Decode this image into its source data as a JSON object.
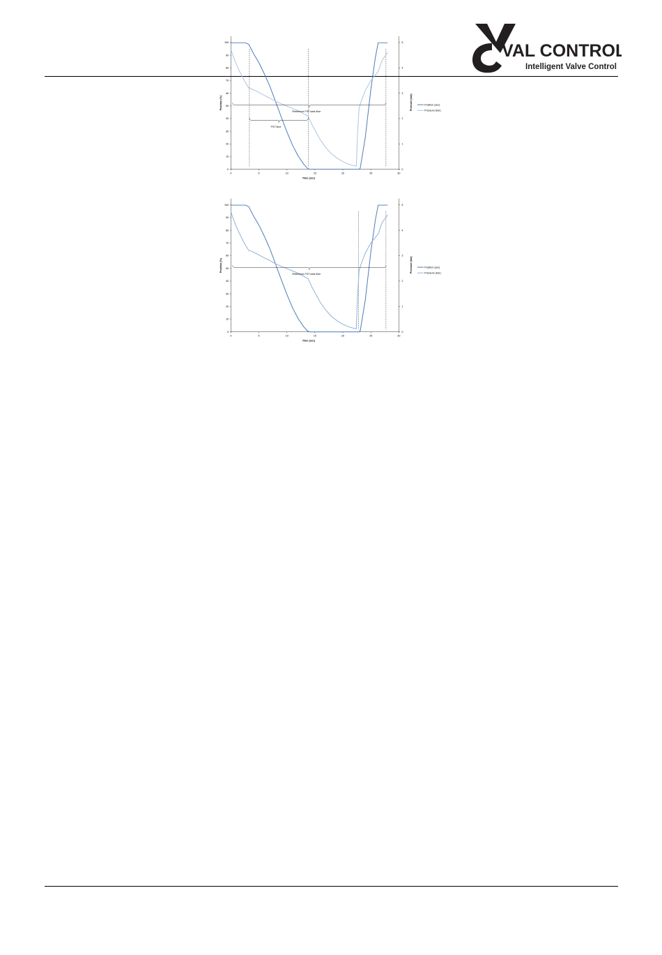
{
  "header": {
    "brand_name": "VAL CONTROLS",
    "tagline": "Intelligent Valve Control",
    "colors": {
      "logo_dark": "#231f20"
    }
  },
  "chart_data": [
    {
      "type": "line",
      "xlabel": "Time (sec)",
      "ylabel": "Position (%)",
      "y2label": "Pressure (bar)",
      "xlim": [
        0,
        30
      ],
      "ylim": [
        0,
        100
      ],
      "y2lim": [
        0,
        5
      ],
      "xticks": [
        0,
        5,
        10,
        15,
        20,
        25,
        30
      ],
      "yticks": [
        0,
        10,
        20,
        30,
        40,
        50,
        60,
        70,
        80,
        90,
        100
      ],
      "y2ticks": [
        0,
        1,
        2,
        3,
        4,
        5
      ],
      "legend_position": "right",
      "series": [
        {
          "name": "Position (sec)",
          "axis": "left",
          "color": "#4a7ab5",
          "points": [
            [
              0,
              99.8
            ],
            [
              2.6,
              99.8
            ],
            [
              3.2,
              98.5
            ],
            [
              3.6,
              95
            ],
            [
              4,
              91.5
            ],
            [
              5,
              84
            ],
            [
              6,
              75
            ],
            [
              7,
              65
            ],
            [
              8,
              53
            ],
            [
              9,
              41
            ],
            [
              10,
              29.5
            ],
            [
              11,
              19
            ],
            [
              12,
              10.5
            ],
            [
              13,
              4
            ],
            [
              13.7,
              0.6
            ],
            [
              14,
              0
            ],
            [
              22.9,
              0
            ],
            [
              23.1,
              0.8
            ],
            [
              24,
              25
            ],
            [
              25,
              63
            ],
            [
              25.8,
              88
            ],
            [
              26.3,
              99.8
            ],
            [
              28,
              99.8
            ]
          ]
        },
        {
          "name": "Pressure (bar)",
          "axis": "right",
          "color": "#a9c4e2",
          "points": [
            [
              0,
              4.72
            ],
            [
              0.5,
              4.4
            ],
            [
              1,
              4.12
            ],
            [
              1.5,
              3.88
            ],
            [
              2,
              3.66
            ],
            [
              2.5,
              3.45
            ],
            [
              3.2,
              3.2
            ],
            [
              3.5,
              3.19
            ],
            [
              4,
              3.14
            ],
            [
              5,
              3.03
            ],
            [
              6,
              2.91
            ],
            [
              7,
              2.8
            ],
            [
              8,
              2.68
            ],
            [
              9,
              2.58
            ],
            [
              10,
              2.49
            ],
            [
              11,
              2.4
            ],
            [
              12,
              2.31
            ],
            [
              13,
              2.19
            ],
            [
              13.8,
              2.09
            ],
            [
              14.5,
              1.75
            ],
            [
              15,
              1.55
            ],
            [
              16,
              1.15
            ],
            [
              17,
              0.84
            ],
            [
              18,
              0.6
            ],
            [
              19,
              0.43
            ],
            [
              20,
              0.3
            ],
            [
              21,
              0.2
            ],
            [
              22,
              0.14
            ],
            [
              22.4,
              0.12
            ],
            [
              22.6,
              1.3
            ],
            [
              22.9,
              2.42
            ],
            [
              23.3,
              2.7
            ],
            [
              24,
              3.1
            ],
            [
              25,
              3.5
            ],
            [
              25.8,
              3.72
            ],
            [
              26.3,
              3.85
            ],
            [
              27,
              4.3
            ],
            [
              28,
              4.6
            ]
          ]
        }
      ],
      "vlines": [
        3.3,
        13.8,
        27.7
      ],
      "annotations": [
        {
          "text": "Reference FST total time",
          "from": 0.3,
          "to": 27.7,
          "y": 52.5
        },
        {
          "text": "FST time",
          "from": 3.3,
          "to": 13.8,
          "y": 40.5
        }
      ]
    },
    {
      "type": "line",
      "xlabel": "Time (sec)",
      "ylabel": "Position (%)",
      "y2label": "Pressure (bar)",
      "xlim": [
        0,
        30
      ],
      "ylim": [
        0,
        100
      ],
      "y2lim": [
        0,
        5
      ],
      "xticks": [
        0,
        5,
        10,
        15,
        20,
        25,
        30
      ],
      "yticks": [
        0,
        10,
        20,
        30,
        40,
        50,
        60,
        70,
        80,
        90,
        100
      ],
      "y2ticks": [
        0,
        1,
        2,
        3,
        4,
        5
      ],
      "legend_position": "right",
      "series": [
        {
          "name": "Position (sec)",
          "axis": "left",
          "color": "#4a7ab5",
          "points": [
            [
              0,
              99.8
            ],
            [
              2.6,
              99.8
            ],
            [
              3.2,
              98.5
            ],
            [
              3.6,
              95
            ],
            [
              4,
              91.5
            ],
            [
              5,
              84
            ],
            [
              6,
              75
            ],
            [
              7,
              65
            ],
            [
              8,
              53
            ],
            [
              9,
              41
            ],
            [
              10,
              29.5
            ],
            [
              11,
              19
            ],
            [
              12,
              10.5
            ],
            [
              13,
              4
            ],
            [
              13.7,
              0.6
            ],
            [
              14,
              0
            ],
            [
              22.9,
              0
            ],
            [
              23.1,
              0.8
            ],
            [
              24,
              25
            ],
            [
              25,
              63
            ],
            [
              25.8,
              88
            ],
            [
              26.3,
              99.8
            ],
            [
              28,
              99.8
            ]
          ]
        },
        {
          "name": "Pressure (bar)",
          "axis": "right",
          "color": "#8eb0da",
          "points": [
            [
              0,
              4.72
            ],
            [
              0.5,
              4.4
            ],
            [
              1,
              4.12
            ],
            [
              1.5,
              3.88
            ],
            [
              2,
              3.66
            ],
            [
              2.5,
              3.45
            ],
            [
              3.2,
              3.2
            ],
            [
              3.5,
              3.19
            ],
            [
              4,
              3.14
            ],
            [
              5,
              3.03
            ],
            [
              6,
              2.91
            ],
            [
              7,
              2.8
            ],
            [
              8,
              2.68
            ],
            [
              9,
              2.58
            ],
            [
              10,
              2.49
            ],
            [
              11,
              2.4
            ],
            [
              12,
              2.31
            ],
            [
              13,
              2.19
            ],
            [
              13.8,
              2.09
            ],
            [
              14.5,
              1.75
            ],
            [
              15,
              1.55
            ],
            [
              16,
              1.15
            ],
            [
              17,
              0.84
            ],
            [
              18,
              0.6
            ],
            [
              19,
              0.43
            ],
            [
              20,
              0.3
            ],
            [
              21,
              0.2
            ],
            [
              22,
              0.14
            ],
            [
              22.4,
              0.12
            ],
            [
              22.6,
              1.3
            ],
            [
              22.9,
              2.42
            ],
            [
              23.3,
              2.7
            ],
            [
              24,
              3.1
            ],
            [
              25,
              3.5
            ],
            [
              25.8,
              3.72
            ],
            [
              26.3,
              3.85
            ],
            [
              27,
              4.3
            ],
            [
              28,
              4.6
            ]
          ]
        }
      ],
      "vlines": [
        22.8,
        27.7
      ],
      "annotations": [
        {
          "text": "Reference FST total time",
          "from": 0.3,
          "to": 27.7,
          "y": 52.5
        }
      ]
    }
  ]
}
